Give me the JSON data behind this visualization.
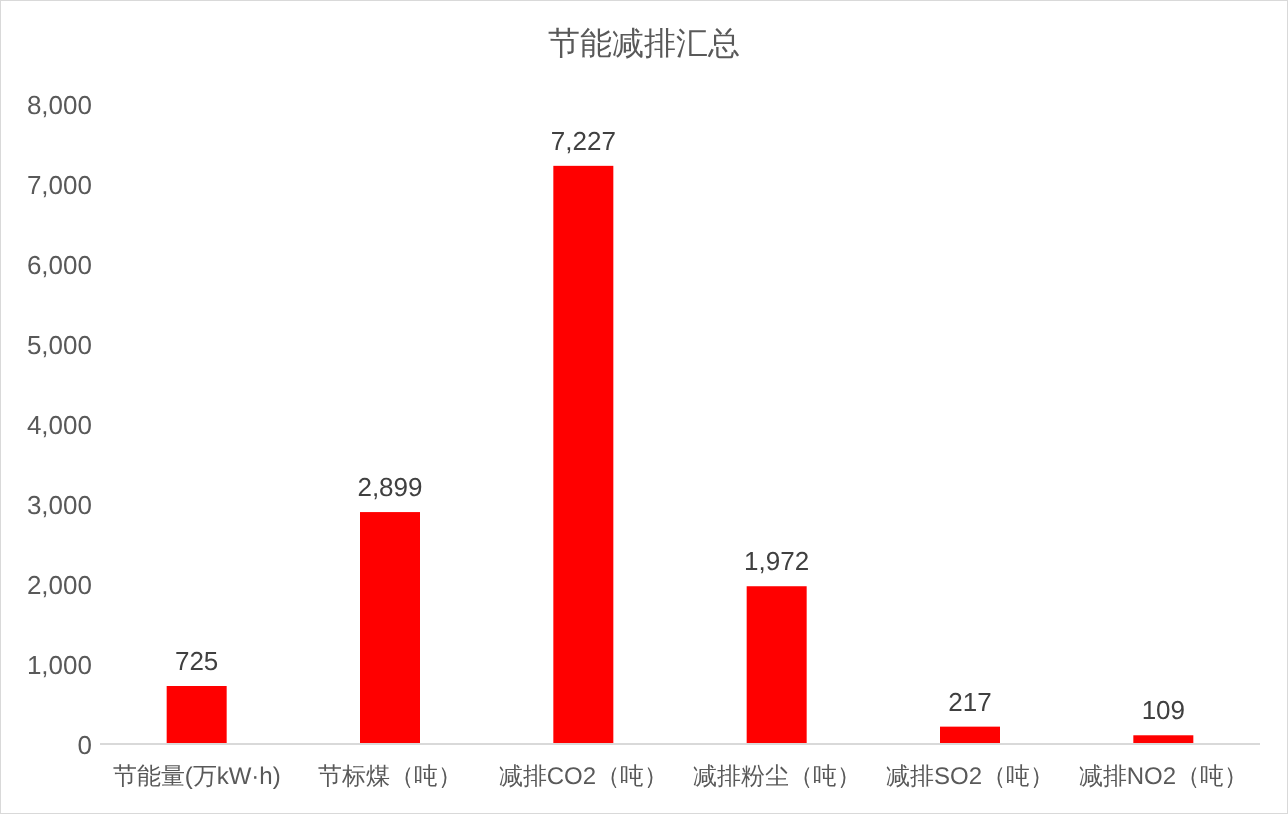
{
  "chart_data": {
    "type": "bar",
    "title": "节能减排汇总",
    "categories": [
      "节能量(万kW·h)",
      "节标煤（吨）",
      "减排CO2（吨）",
      "减排粉尘（吨）",
      "减排SO2（吨）",
      "减排NO2（吨）"
    ],
    "values": [
      725,
      2899,
      7227,
      1972,
      217,
      109
    ],
    "color": "#ff0000",
    "ylim": [
      0,
      8000
    ],
    "yticks": [
      {
        "value": 0,
        "label": "0"
      },
      {
        "value": 1000,
        "label": "1,000"
      },
      {
        "value": 2000,
        "label": "2,000"
      },
      {
        "value": 3000,
        "label": "3,000"
      },
      {
        "value": 4000,
        "label": "4,000"
      },
      {
        "value": 5000,
        "label": "5,000"
      },
      {
        "value": 6000,
        "label": "6,000"
      },
      {
        "value": 7000,
        "label": "7,000"
      },
      {
        "value": 8000,
        "label": "8,000"
      }
    ],
    "value_labels": [
      "725",
      "2,899",
      "7,227",
      "1,972",
      "217",
      "109"
    ]
  }
}
